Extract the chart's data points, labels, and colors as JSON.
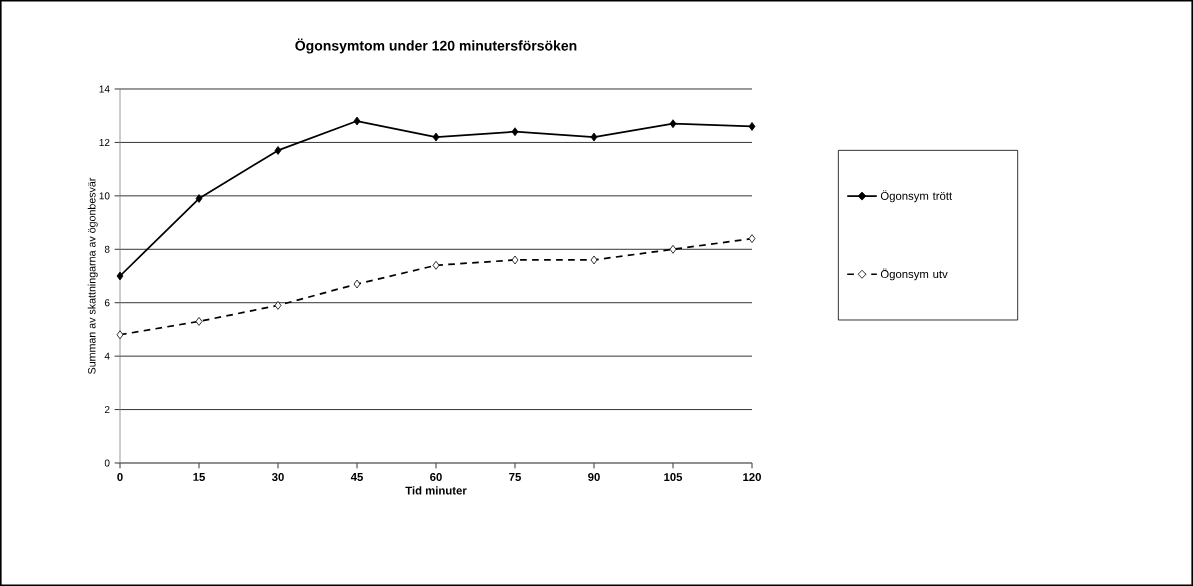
{
  "chart_data": {
    "type": "line",
    "title": "Ögonsymtom under 120 minutersförsöken",
    "xlabel": "Tid minuter",
    "ylabel": "Summan av skattningarna av ögonbesvär",
    "x": [
      0,
      15,
      30,
      45,
      60,
      75,
      90,
      105,
      120
    ],
    "series": [
      {
        "name": "Ögonsym trött",
        "color": "#000000",
        "line_style": "solid",
        "values": [
          7.0,
          9.9,
          11.7,
          12.8,
          12.2,
          12.4,
          12.2,
          12.7,
          12.6
        ]
      },
      {
        "name": "Ögonsym utv",
        "color": "#000000",
        "line_style": "dashed",
        "values": [
          4.8,
          5.3,
          5.9,
          6.7,
          7.4,
          7.6,
          7.6,
          8.0,
          8.4
        ]
      }
    ],
    "xlim": [
      0,
      120
    ],
    "xticks": [
      0,
      15,
      30,
      45,
      60,
      75,
      90,
      105,
      120
    ],
    "ylim": [
      0,
      14
    ],
    "yticks": [
      0,
      2,
      4,
      6,
      8,
      10,
      12,
      14
    ],
    "grid": "y",
    "legend": "right",
    "marker": "diamond"
  }
}
